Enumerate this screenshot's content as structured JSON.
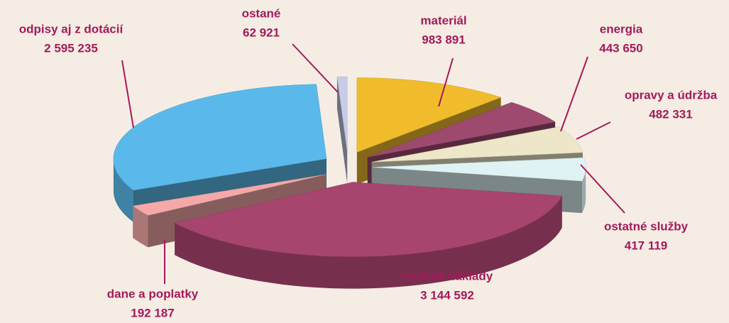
{
  "chart_data": {
    "type": "pie",
    "categories": [
      "materiál",
      "energia",
      "opravy a údržba",
      "ostatné služby",
      "osobné náklady",
      "dane a poplatky",
      "odpisy aj z dotácií",
      "ostané"
    ],
    "values": [
      983891,
      443650,
      482331,
      417119,
      3144592,
      192187,
      2595235,
      62921
    ],
    "value_labels": [
      "983 891",
      "443 650",
      "482 331",
      "417 119",
      "3 144 592",
      "192 187",
      "2 595 235",
      "62 921"
    ],
    "colors": [
      "#f0bc2c",
      "#9e4a6e",
      "#ede6c8",
      "#dff3f5",
      "#a8456e",
      "#f4a9a8",
      "#5ab9ea",
      "#c8cce8"
    ]
  }
}
